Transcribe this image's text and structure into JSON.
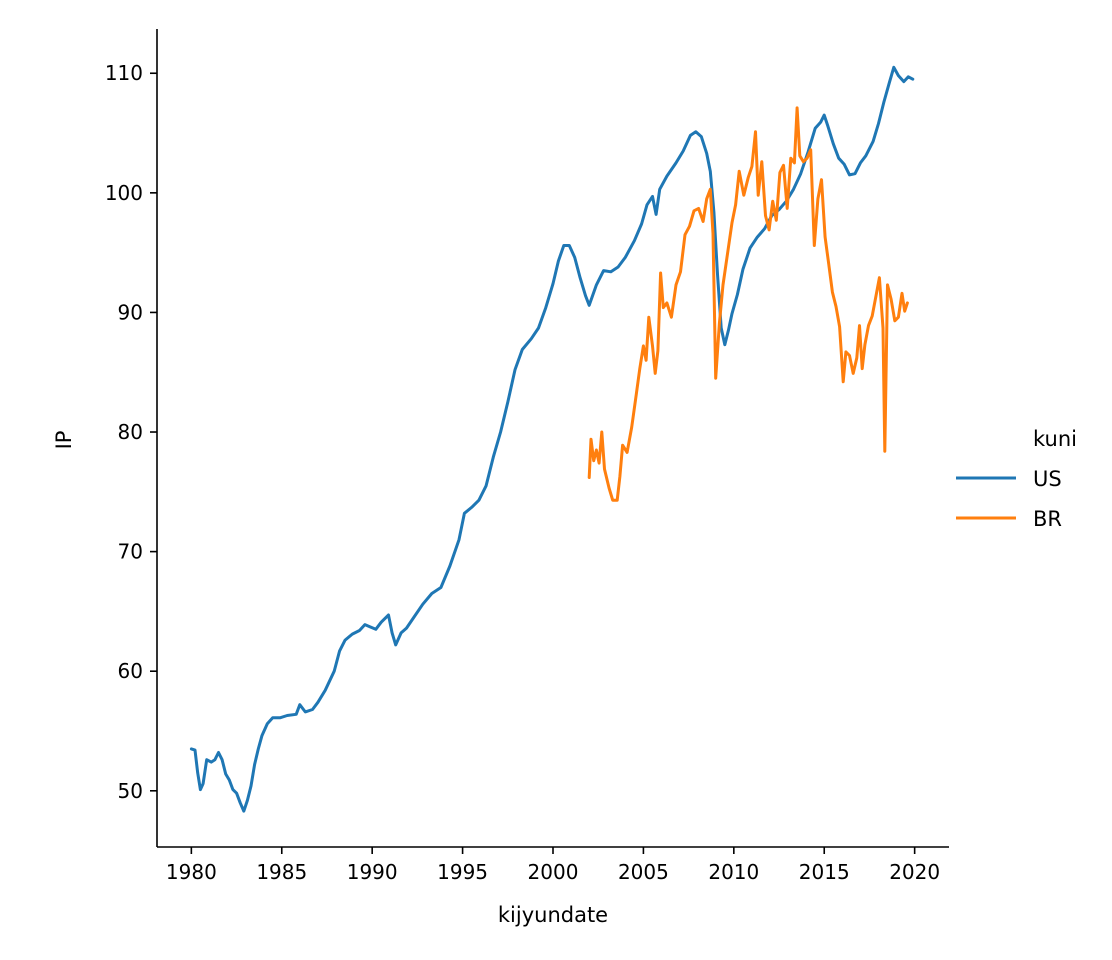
{
  "chart_data": {
    "type": "line",
    "xlabel": "kijyundate",
    "ylabel": "IP",
    "xlim": [
      1978.1,
      2021.9
    ],
    "ylim": [
      45.3,
      113.7
    ],
    "xticks": [
      1980,
      1985,
      1990,
      1995,
      2000,
      2005,
      2010,
      2015,
      2020
    ],
    "yticks": [
      50,
      60,
      70,
      80,
      90,
      100,
      110
    ],
    "grid": false,
    "legend": {
      "title": "kuni",
      "placement": "right"
    },
    "series": [
      {
        "name": "US",
        "color": "#1f77b4",
        "points": [
          [
            1980.0,
            53.5
          ],
          [
            1980.2,
            53.4
          ],
          [
            1980.35,
            51.5
          ],
          [
            1980.5,
            50.1
          ],
          [
            1980.65,
            50.6
          ],
          [
            1980.85,
            52.6
          ],
          [
            1981.1,
            52.4
          ],
          [
            1981.3,
            52.6
          ],
          [
            1981.5,
            53.2
          ],
          [
            1981.7,
            52.6
          ],
          [
            1981.9,
            51.4
          ],
          [
            1982.1,
            50.9
          ],
          [
            1982.3,
            50.1
          ],
          [
            1982.5,
            49.8
          ],
          [
            1982.7,
            49.0
          ],
          [
            1982.9,
            48.3
          ],
          [
            1983.1,
            49.2
          ],
          [
            1983.3,
            50.4
          ],
          [
            1983.5,
            52.2
          ],
          [
            1983.7,
            53.5
          ],
          [
            1983.9,
            54.6
          ],
          [
            1984.2,
            55.6
          ],
          [
            1984.5,
            56.1
          ],
          [
            1984.9,
            56.1
          ],
          [
            1985.3,
            56.3
          ],
          [
            1985.8,
            56.4
          ],
          [
            1986.0,
            57.2
          ],
          [
            1986.3,
            56.6
          ],
          [
            1986.7,
            56.8
          ],
          [
            1987.0,
            57.4
          ],
          [
            1987.4,
            58.4
          ],
          [
            1987.9,
            60.0
          ],
          [
            1988.2,
            61.7
          ],
          [
            1988.5,
            62.6
          ],
          [
            1988.9,
            63.1
          ],
          [
            1989.3,
            63.4
          ],
          [
            1989.6,
            63.9
          ],
          [
            1989.9,
            63.7
          ],
          [
            1990.2,
            63.5
          ],
          [
            1990.5,
            64.1
          ],
          [
            1990.9,
            64.7
          ],
          [
            1991.1,
            63.2
          ],
          [
            1991.3,
            62.2
          ],
          [
            1991.6,
            63.2
          ],
          [
            1991.9,
            63.6
          ],
          [
            1992.3,
            64.5
          ],
          [
            1992.8,
            65.6
          ],
          [
            1993.3,
            66.5
          ],
          [
            1993.8,
            67.0
          ],
          [
            1994.3,
            68.8
          ],
          [
            1994.8,
            71.0
          ],
          [
            1995.1,
            73.2
          ],
          [
            1995.5,
            73.7
          ],
          [
            1995.9,
            74.3
          ],
          [
            1996.3,
            75.5
          ],
          [
            1996.7,
            77.9
          ],
          [
            1997.1,
            80.0
          ],
          [
            1997.5,
            82.5
          ],
          [
            1997.9,
            85.2
          ],
          [
            1998.3,
            86.9
          ],
          [
            1998.8,
            87.8
          ],
          [
            1999.2,
            88.7
          ],
          [
            1999.6,
            90.4
          ],
          [
            2000.0,
            92.4
          ],
          [
            2000.3,
            94.3
          ],
          [
            2000.6,
            95.6
          ],
          [
            2000.9,
            95.6
          ],
          [
            2001.2,
            94.6
          ],
          [
            2001.5,
            92.9
          ],
          [
            2001.8,
            91.4
          ],
          [
            2002.0,
            90.6
          ],
          [
            2002.4,
            92.3
          ],
          [
            2002.8,
            93.5
          ],
          [
            2003.2,
            93.4
          ],
          [
            2003.6,
            93.8
          ],
          [
            2004.0,
            94.6
          ],
          [
            2004.5,
            96.0
          ],
          [
            2004.9,
            97.4
          ],
          [
            2005.2,
            99.0
          ],
          [
            2005.5,
            99.7
          ],
          [
            2005.7,
            98.2
          ],
          [
            2005.9,
            100.3
          ],
          [
            2006.3,
            101.4
          ],
          [
            2006.8,
            102.5
          ],
          [
            2007.2,
            103.5
          ],
          [
            2007.6,
            104.8
          ],
          [
            2007.9,
            105.1
          ],
          [
            2008.2,
            104.7
          ],
          [
            2008.5,
            103.3
          ],
          [
            2008.7,
            101.8
          ],
          [
            2008.9,
            98.4
          ],
          [
            2009.1,
            93.2
          ],
          [
            2009.3,
            88.7
          ],
          [
            2009.5,
            87.3
          ],
          [
            2009.7,
            88.5
          ],
          [
            2009.9,
            89.9
          ],
          [
            2010.2,
            91.5
          ],
          [
            2010.5,
            93.6
          ],
          [
            2010.9,
            95.4
          ],
          [
            2011.3,
            96.3
          ],
          [
            2011.7,
            97.0
          ],
          [
            2012.1,
            98.1
          ],
          [
            2012.5,
            98.6
          ],
          [
            2012.9,
            99.3
          ],
          [
            2013.3,
            100.3
          ],
          [
            2013.7,
            101.6
          ],
          [
            2014.1,
            103.4
          ],
          [
            2014.5,
            105.4
          ],
          [
            2014.8,
            105.9
          ],
          [
            2015.0,
            106.5
          ],
          [
            2015.2,
            105.6
          ],
          [
            2015.5,
            104.1
          ],
          [
            2015.8,
            102.9
          ],
          [
            2016.1,
            102.4
          ],
          [
            2016.4,
            101.5
          ],
          [
            2016.7,
            101.6
          ],
          [
            2017.0,
            102.5
          ],
          [
            2017.3,
            103.1
          ],
          [
            2017.7,
            104.3
          ],
          [
            2018.0,
            105.8
          ],
          [
            2018.3,
            107.6
          ],
          [
            2018.6,
            109.2
          ],
          [
            2018.85,
            110.5
          ],
          [
            2019.1,
            109.8
          ],
          [
            2019.4,
            109.3
          ],
          [
            2019.65,
            109.7
          ],
          [
            2019.9,
            109.5
          ]
        ]
      },
      {
        "name": "BR",
        "color": "#ff7f0e",
        "points": [
          [
            2002.0,
            76.2
          ],
          [
            2002.1,
            79.4
          ],
          [
            2002.25,
            77.6
          ],
          [
            2002.4,
            78.5
          ],
          [
            2002.55,
            77.4
          ],
          [
            2002.7,
            80.0
          ],
          [
            2002.85,
            76.9
          ],
          [
            2003.1,
            75.3
          ],
          [
            2003.3,
            74.3
          ],
          [
            2003.55,
            74.3
          ],
          [
            2003.7,
            76.3
          ],
          [
            2003.85,
            78.9
          ],
          [
            2004.1,
            78.3
          ],
          [
            2004.35,
            80.4
          ],
          [
            2004.6,
            83.1
          ],
          [
            2004.8,
            85.3
          ],
          [
            2005.0,
            87.2
          ],
          [
            2005.15,
            86.0
          ],
          [
            2005.3,
            89.6
          ],
          [
            2005.5,
            87.2
          ],
          [
            2005.65,
            84.9
          ],
          [
            2005.8,
            86.8
          ],
          [
            2005.95,
            93.3
          ],
          [
            2006.1,
            90.4
          ],
          [
            2006.3,
            90.8
          ],
          [
            2006.55,
            89.6
          ],
          [
            2006.8,
            92.3
          ],
          [
            2007.05,
            93.4
          ],
          [
            2007.3,
            96.5
          ],
          [
            2007.55,
            97.2
          ],
          [
            2007.8,
            98.5
          ],
          [
            2008.05,
            98.7
          ],
          [
            2008.3,
            97.6
          ],
          [
            2008.5,
            99.5
          ],
          [
            2008.7,
            100.3
          ],
          [
            2008.85,
            96.6
          ],
          [
            2009.0,
            84.5
          ],
          [
            2009.2,
            89.1
          ],
          [
            2009.4,
            92.3
          ],
          [
            2009.65,
            94.9
          ],
          [
            2009.9,
            97.5
          ],
          [
            2010.1,
            99.0
          ],
          [
            2010.3,
            101.8
          ],
          [
            2010.55,
            99.8
          ],
          [
            2010.8,
            101.3
          ],
          [
            2011.0,
            102.2
          ],
          [
            2011.2,
            105.1
          ],
          [
            2011.35,
            99.8
          ],
          [
            2011.55,
            102.6
          ],
          [
            2011.75,
            98.1
          ],
          [
            2011.95,
            96.9
          ],
          [
            2012.15,
            99.3
          ],
          [
            2012.35,
            97.7
          ],
          [
            2012.55,
            101.7
          ],
          [
            2012.75,
            102.3
          ],
          [
            2012.95,
            98.7
          ],
          [
            2013.15,
            102.9
          ],
          [
            2013.35,
            102.5
          ],
          [
            2013.5,
            107.1
          ],
          [
            2013.65,
            103.1
          ],
          [
            2013.85,
            102.6
          ],
          [
            2014.05,
            102.9
          ],
          [
            2014.25,
            103.6
          ],
          [
            2014.45,
            95.6
          ],
          [
            2014.65,
            99.5
          ],
          [
            2014.85,
            101.1
          ],
          [
            2015.05,
            96.3
          ],
          [
            2015.25,
            94.0
          ],
          [
            2015.45,
            91.7
          ],
          [
            2015.65,
            90.5
          ],
          [
            2015.85,
            88.8
          ],
          [
            2016.05,
            84.2
          ],
          [
            2016.2,
            86.7
          ],
          [
            2016.4,
            86.4
          ],
          [
            2016.6,
            84.9
          ],
          [
            2016.8,
            86.2
          ],
          [
            2016.95,
            88.9
          ],
          [
            2017.1,
            85.3
          ],
          [
            2017.25,
            87.3
          ],
          [
            2017.45,
            88.9
          ],
          [
            2017.65,
            89.7
          ],
          [
            2017.85,
            91.3
          ],
          [
            2018.05,
            92.9
          ],
          [
            2018.25,
            88.7
          ],
          [
            2018.35,
            78.4
          ],
          [
            2018.5,
            92.3
          ],
          [
            2018.7,
            91.1
          ],
          [
            2018.9,
            89.3
          ],
          [
            2019.1,
            89.6
          ],
          [
            2019.3,
            91.6
          ],
          [
            2019.45,
            90.1
          ],
          [
            2019.6,
            90.8
          ]
        ]
      }
    ]
  }
}
